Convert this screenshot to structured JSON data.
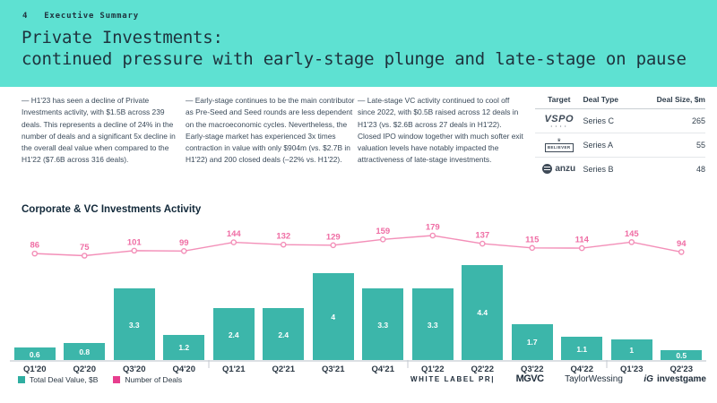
{
  "header": {
    "page_number": "4",
    "section": "Executive Summary",
    "title_line1": "Private Investments:",
    "title_line2": "continued pressure with early-stage plunge and late-stage on pause"
  },
  "summary": [
    {
      "text": "— H1'23 has seen a decline of Private Investments activity, with $1.5B across 239 deals. This represents a decline of 24% in the number of deals and a significant 5x decline in the overall deal value when compared to the H1'22 ($7.6B across 316 deals)."
    },
    {
      "text": "— Early-stage continues to be the main contributor as Pre-Seed and Seed rounds are less dependent on the macroeconomic cycles. Nevertheless, the Early-stage market has experienced 3x times contraction in value with only $904m (vs. $2.7B in H1'22) and 200 closed deals (–22% vs. H1'22)."
    },
    {
      "text": "— Late-stage VC activity continued to cool off since 2022, with $0.5B raised across 12 deals in H1'23 (vs. $2.6B across 27 deals in H1'22). Closed IPO window together with much softer exit valuation levels have notably impacted the attractiveness of late-stage investments."
    }
  ],
  "deals_table": {
    "headers": [
      "Target",
      "Deal Type",
      "Deal Size, $m"
    ],
    "rows": [
      {
        "target": "VSPO",
        "deal_type": "Series C",
        "deal_size": "265"
      },
      {
        "target": "BELIEVER",
        "deal_type": "Series A",
        "deal_size": "55"
      },
      {
        "target": "anzu",
        "deal_type": "Series B",
        "deal_size": "48"
      }
    ]
  },
  "chart_data": {
    "type": "bar",
    "title": "Corporate & VC Investments Activity",
    "categories": [
      "Q1'20",
      "Q2'20",
      "Q3'20",
      "Q4'20",
      "Q1'21",
      "Q2'21",
      "Q3'21",
      "Q4'21",
      "Q1'22",
      "Q2'22",
      "Q3'22",
      "Q4'22",
      "Q1'23",
      "Q2'23"
    ],
    "series": [
      {
        "name": "Total Deal Value, $B",
        "type": "bar",
        "color": "#3CB6AA",
        "values": [
          0.6,
          0.8,
          3.3,
          1.2,
          2.4,
          2.4,
          4,
          3.3,
          3.3,
          4.4,
          1.7,
          1.1,
          1,
          0.5
        ]
      },
      {
        "name": "Number of Deals",
        "type": "line",
        "color": "#F38FB8",
        "label_color": "#EF6DA4",
        "values": [
          86,
          75,
          101,
          99,
          144,
          132,
          129,
          159,
          179,
          137,
          115,
          114,
          145,
          94
        ]
      }
    ],
    "legend_position": "bottom-left",
    "grid": false,
    "ylim_bar": [
      0,
      4.4
    ],
    "ylim_line": [
      75,
      179
    ]
  },
  "colors": {
    "band_teal": "#5EE1D2",
    "bar_teal": "#3CB6AA",
    "legend_teal": "#2FAEA1",
    "line_pink": "#F38FB8",
    "line_label_pink": "#EF6DA4",
    "legend_pink": "#E73E8E",
    "dark_text": "#20343F",
    "axis_gray": "#DCE0E4"
  },
  "footer": {
    "logos": [
      {
        "name": "white-label-pr",
        "text": "WHITE LABEL PR|"
      },
      {
        "name": "mgvc",
        "text": "MGVC"
      },
      {
        "name": "taylor-wessing",
        "text": "TaylorWessing"
      },
      {
        "name": "investgame",
        "mark": "iG",
        "text": "investgame"
      }
    ]
  }
}
